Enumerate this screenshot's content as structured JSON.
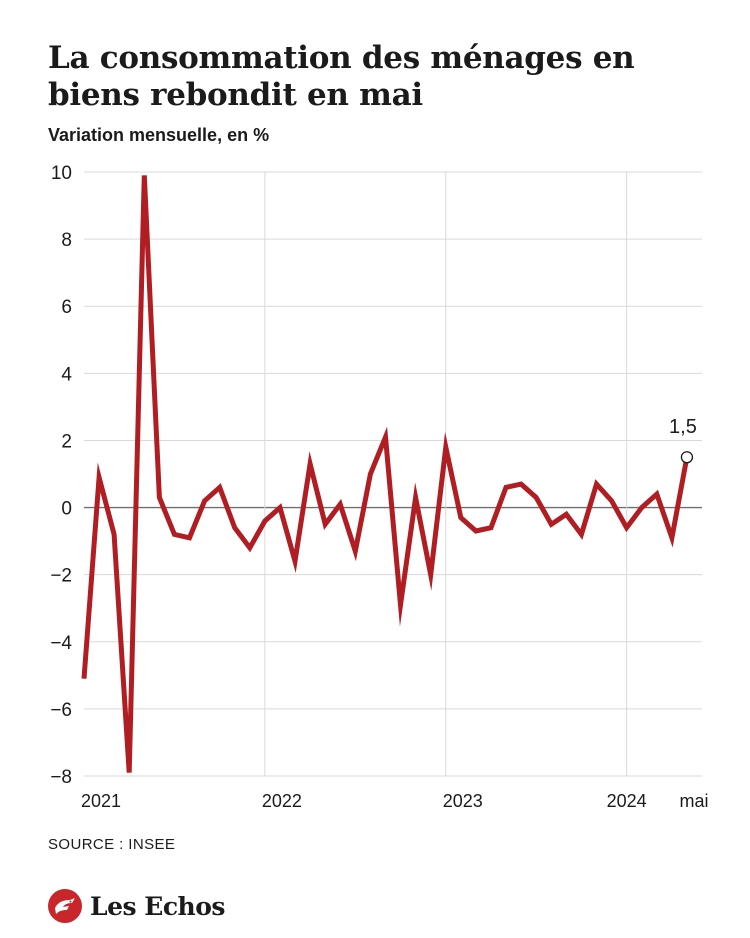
{
  "header": {
    "title": "La consommation des ménages en biens rebondit en mai",
    "subtitle": "Variation mensuelle, en %"
  },
  "footer": {
    "source": "SOURCE : INSEE",
    "brand": "Les Echos"
  },
  "colors": {
    "line": "#b01e23",
    "grid": "#d9d9d9",
    "zero": "#6f6f6f",
    "text": "#1b1b1b"
  },
  "chart_data": {
    "type": "line",
    "x": [
      "2021-01",
      "2021-02",
      "2021-03",
      "2021-04",
      "2021-05",
      "2021-06",
      "2021-07",
      "2021-08",
      "2021-09",
      "2021-10",
      "2021-11",
      "2021-12",
      "2022-01",
      "2022-02",
      "2022-03",
      "2022-04",
      "2022-05",
      "2022-06",
      "2022-07",
      "2022-08",
      "2022-09",
      "2022-10",
      "2022-11",
      "2022-12",
      "2023-01",
      "2023-02",
      "2023-03",
      "2023-04",
      "2023-05",
      "2023-06",
      "2023-07",
      "2023-08",
      "2023-09",
      "2023-10",
      "2023-11",
      "2023-12",
      "2024-01",
      "2024-02",
      "2024-03",
      "2024-04",
      "2024-05"
    ],
    "series": [
      {
        "values": [
          -5.1,
          0.9,
          -0.8,
          -7.9,
          9.9,
          0.3,
          -0.8,
          -0.9,
          0.2,
          0.6,
          -0.6,
          -1.2,
          -0.4,
          0.0,
          -1.6,
          1.3,
          -0.5,
          0.1,
          -1.3,
          1.0,
          2.1,
          -2.9,
          0.3,
          -2.0,
          1.8,
          -0.3,
          -0.7,
          -0.6,
          0.6,
          0.7,
          0.3,
          -0.5,
          -0.2,
          -0.8,
          0.7,
          0.2,
          -0.6,
          0.0,
          0.4,
          -0.9,
          1.5
        ]
      }
    ],
    "x_ticks": [
      {
        "date": "2021-01",
        "label": "2021"
      },
      {
        "date": "2022-01",
        "label": "2022"
      },
      {
        "date": "2023-01",
        "label": "2023"
      },
      {
        "date": "2024-01",
        "label": "2024"
      },
      {
        "date": "2024-05",
        "label": "mai"
      }
    ],
    "y_ticks": [
      10,
      8,
      6,
      4,
      2,
      0,
      -2,
      -4,
      -6,
      -8
    ],
    "y_tick_labels": [
      "10",
      "8",
      "6",
      "4",
      "2",
      "0",
      "−2",
      "−4",
      "−6",
      "−8"
    ],
    "ylim": [
      -8,
      10
    ],
    "xlim": [
      "2021-01",
      "2024-06"
    ],
    "grid": true,
    "legend": "none",
    "annotations": [
      {
        "date": "2024-05",
        "value": 1.5,
        "text": "1,5"
      }
    ]
  }
}
